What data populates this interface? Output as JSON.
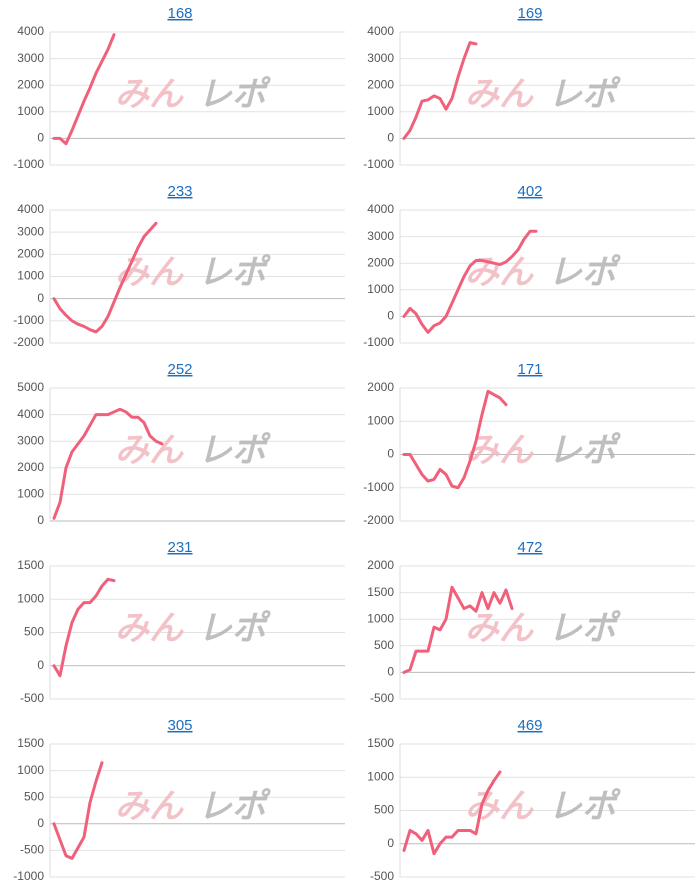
{
  "watermark": {
    "left": "みん",
    "right": "レポ"
  },
  "chart_data": [
    {
      "type": "line",
      "title": "168",
      "ylim": [
        -1000,
        4000
      ],
      "yticks": [
        -1000,
        0,
        1000,
        2000,
        3000,
        4000
      ],
      "grid": true,
      "color": "#f0607a",
      "values": [
        0,
        0,
        -200,
        300,
        850,
        1400,
        1900,
        2450,
        2900,
        3350,
        3900
      ]
    },
    {
      "type": "line",
      "title": "169",
      "ylim": [
        -1000,
        4000
      ],
      "yticks": [
        -1000,
        0,
        1000,
        2000,
        3000,
        4000
      ],
      "grid": true,
      "color": "#f0607a",
      "values": [
        0,
        300,
        800,
        1400,
        1450,
        1600,
        1500,
        1100,
        1500,
        2300,
        3000,
        3600,
        3550
      ]
    },
    {
      "type": "line",
      "title": "233",
      "ylim": [
        -2000,
        4000
      ],
      "yticks": [
        -2000,
        -1000,
        0,
        1000,
        2000,
        3000,
        4000
      ],
      "grid": true,
      "color": "#f0607a",
      "values": [
        0,
        -450,
        -750,
        -1000,
        -1150,
        -1250,
        -1400,
        -1500,
        -1250,
        -800,
        -150,
        500,
        1100,
        1700,
        2300,
        2800,
        3100,
        3400
      ]
    },
    {
      "type": "line",
      "title": "402",
      "ylim": [
        -1000,
        4000
      ],
      "yticks": [
        -1000,
        0,
        1000,
        2000,
        3000,
        4000
      ],
      "grid": true,
      "color": "#f0607a",
      "values": [
        0,
        300,
        100,
        -300,
        -600,
        -350,
        -250,
        0,
        500,
        1000,
        1500,
        1900,
        2100,
        2100,
        2050,
        2000,
        1950,
        2050,
        2250,
        2500,
        2900,
        3200,
        3200
      ]
    },
    {
      "type": "line",
      "title": "252",
      "ylim": [
        0,
        5000
      ],
      "yticks": [
        0,
        1000,
        2000,
        3000,
        4000,
        5000
      ],
      "grid": true,
      "color": "#f0607a",
      "values": [
        100,
        700,
        2000,
        2600,
        2900,
        3200,
        3600,
        4000,
        4000,
        4000,
        4100,
        4200,
        4100,
        3900,
        3900,
        3700,
        3200,
        3000,
        2900
      ]
    },
    {
      "type": "line",
      "title": "171",
      "ylim": [
        -2000,
        2000
      ],
      "yticks": [
        -2000,
        -1000,
        0,
        1000,
        2000
      ],
      "grid": true,
      "color": "#f0607a",
      "values": [
        0,
        0,
        -300,
        -600,
        -800,
        -750,
        -450,
        -600,
        -950,
        -1000,
        -700,
        -200,
        400,
        1200,
        1900,
        1800,
        1700,
        1500
      ]
    },
    {
      "type": "line",
      "title": "231",
      "ylim": [
        -500,
        1500
      ],
      "yticks": [
        -500,
        0,
        500,
        1000,
        1500
      ],
      "grid": true,
      "color": "#f0607a",
      "values": [
        0,
        -150,
        300,
        650,
        850,
        950,
        950,
        1050,
        1200,
        1300,
        1280
      ]
    },
    {
      "type": "line",
      "title": "472",
      "ylim": [
        -500,
        2000
      ],
      "yticks": [
        -500,
        0,
        500,
        1000,
        1500,
        2000
      ],
      "grid": true,
      "color": "#f0607a",
      "values": [
        0,
        50,
        400,
        400,
        400,
        850,
        800,
        1000,
        1600,
        1400,
        1200,
        1250,
        1150,
        1500,
        1200,
        1500,
        1300,
        1550,
        1200
      ]
    },
    {
      "type": "line",
      "title": "305",
      "ylim": [
        -1000,
        1500
      ],
      "yticks": [
        -1000,
        -500,
        0,
        500,
        1000,
        1500
      ],
      "grid": true,
      "color": "#f0607a",
      "values": [
        0,
        -300,
        -600,
        -650,
        -450,
        -250,
        400,
        800,
        1150
      ]
    },
    {
      "type": "line",
      "title": "469",
      "ylim": [
        -500,
        1500
      ],
      "yticks": [
        -500,
        0,
        500,
        1000,
        1500
      ],
      "grid": true,
      "color": "#f0607a",
      "values": [
        -100,
        200,
        150,
        50,
        200,
        -150,
        0,
        100,
        100,
        200,
        200,
        200,
        150,
        600,
        800,
        950,
        1080
      ]
    }
  ]
}
